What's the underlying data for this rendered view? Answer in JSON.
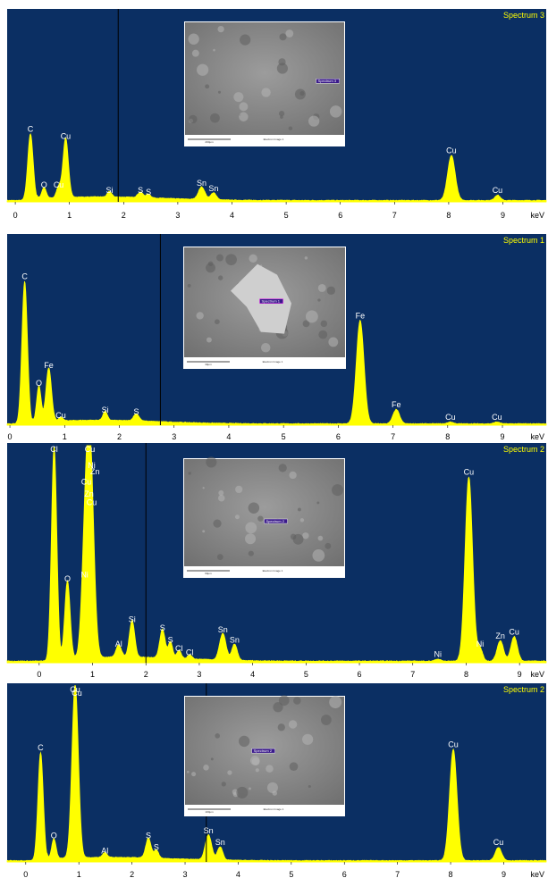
{
  "chart_data": [
    {
      "type": "area",
      "title": "Spectrum 3",
      "unit": "keV",
      "xlim": [
        -0.15,
        9.8
      ],
      "x_ticks": [
        0,
        1,
        2,
        3,
        4,
        5,
        6,
        7,
        8,
        9
      ],
      "cursor_x": 1.9,
      "peaks": [
        {
          "x": 0.28,
          "h": 0.37,
          "w": 0.05,
          "label": "C"
        },
        {
          "x": 0.53,
          "h": 0.06,
          "w": 0.04,
          "label": "O"
        },
        {
          "x": 0.93,
          "h": 0.33,
          "w": 0.05,
          "label": "Cu"
        },
        {
          "x": 0.8,
          "h": 0.06,
          "w": 0.04,
          "label": "Cu"
        },
        {
          "x": 1.74,
          "h": 0.03,
          "w": 0.04,
          "label": "Si"
        },
        {
          "x": 2.31,
          "h": 0.03,
          "w": 0.05,
          "label": "S"
        },
        {
          "x": 2.46,
          "h": 0.02,
          "w": 0.04,
          "label": "S"
        },
        {
          "x": 3.44,
          "h": 0.07,
          "w": 0.06,
          "label": "Sn"
        },
        {
          "x": 3.66,
          "h": 0.04,
          "w": 0.05,
          "label": "Sn"
        },
        {
          "x": 8.05,
          "h": 0.25,
          "w": 0.07,
          "label": "Cu"
        },
        {
          "x": 8.9,
          "h": 0.03,
          "w": 0.05,
          "label": "Cu"
        }
      ],
      "image": {
        "scale": "200µm",
        "caption": "Electron Image 1",
        "marker": "Spectrum 3"
      }
    },
    {
      "type": "area",
      "title": "Spectrum 1",
      "unit": "keV",
      "xlim": [
        -0.05,
        9.8
      ],
      "x_ticks": [
        0,
        1,
        2,
        3,
        4,
        5,
        6,
        7,
        8,
        9
      ],
      "cursor_x": 2.75,
      "peaks": [
        {
          "x": 0.27,
          "h": 0.8,
          "w": 0.05,
          "label": "C"
        },
        {
          "x": 0.53,
          "h": 0.2,
          "w": 0.04,
          "label": "O"
        },
        {
          "x": 0.71,
          "h": 0.3,
          "w": 0.05,
          "label": "Fe"
        },
        {
          "x": 0.93,
          "h": 0.02,
          "w": 0.04,
          "label": "Cu"
        },
        {
          "x": 1.74,
          "h": 0.05,
          "w": 0.04,
          "label": "Si"
        },
        {
          "x": 2.31,
          "h": 0.04,
          "w": 0.05,
          "label": "S"
        },
        {
          "x": 6.4,
          "h": 0.58,
          "w": 0.07,
          "label": "Fe"
        },
        {
          "x": 7.06,
          "h": 0.08,
          "w": 0.06,
          "label": "Fe"
        },
        {
          "x": 8.05,
          "h": 0.01,
          "w": 0.05,
          "label": "Cu"
        },
        {
          "x": 8.9,
          "h": 0.01,
          "w": 0.05,
          "label": "Cu"
        }
      ],
      "image": {
        "scale": "30µm",
        "caption": "Electron Image 1",
        "marker": "Spectrum 1"
      }
    },
    {
      "type": "area",
      "title": "Spectrum 2",
      "unit": "keV",
      "xlim": [
        -0.6,
        9.5
      ],
      "x_ticks": [
        0,
        1,
        2,
        3,
        4,
        5,
        6,
        7,
        8,
        9
      ],
      "cursor_x": 2.0,
      "peaks": [
        {
          "x": 0.28,
          "h": 1.05,
          "w": 0.05,
          "label": "Cl"
        },
        {
          "x": 0.53,
          "h": 0.38,
          "w": 0.05,
          "label": "O"
        },
        {
          "x": 0.85,
          "h": 0.4,
          "w": 0.06,
          "label": "Ni"
        },
        {
          "x": 0.95,
          "h": 1.05,
          "w": 0.07,
          "label": "Cu"
        },
        {
          "x": 1.49,
          "h": 0.06,
          "w": 0.05,
          "label": "Al"
        },
        {
          "x": 1.74,
          "h": 0.18,
          "w": 0.05,
          "label": "Si"
        },
        {
          "x": 2.31,
          "h": 0.14,
          "w": 0.05,
          "label": "S"
        },
        {
          "x": 2.46,
          "h": 0.08,
          "w": 0.04,
          "label": "S"
        },
        {
          "x": 2.62,
          "h": 0.04,
          "w": 0.04,
          "label": "Cl"
        },
        {
          "x": 2.82,
          "h": 0.02,
          "w": 0.04,
          "label": "Cl"
        },
        {
          "x": 3.44,
          "h": 0.13,
          "w": 0.06,
          "label": "Sn"
        },
        {
          "x": 3.66,
          "h": 0.08,
          "w": 0.05,
          "label": "Sn"
        },
        {
          "x": 7.47,
          "h": 0.01,
          "w": 0.05,
          "label": "Ni"
        },
        {
          "x": 8.05,
          "h": 0.9,
          "w": 0.07,
          "label": "Cu"
        },
        {
          "x": 8.26,
          "h": 0.06,
          "w": 0.05,
          "label": "Ni"
        },
        {
          "x": 8.64,
          "h": 0.1,
          "w": 0.06,
          "label": "Zn"
        },
        {
          "x": 8.9,
          "h": 0.12,
          "w": 0.06,
          "label": "Cu"
        }
      ],
      "peak_labels_only": [
        {
          "x": 0.95,
          "level": 0.95,
          "label": "Ni"
        },
        {
          "x": 1.01,
          "level": 0.92,
          "label": "Zn"
        },
        {
          "x": 0.85,
          "level": 0.87,
          "label": "Cu"
        },
        {
          "x": 0.9,
          "level": 0.81,
          "label": "Zn"
        },
        {
          "x": 0.95,
          "level": 0.77,
          "label": "Cu"
        }
      ],
      "image": {
        "scale": "60µm",
        "caption": "Electron Image 1",
        "marker": "Spectrum 2"
      }
    },
    {
      "type": "area",
      "title": "Spectrum 2",
      "unit": "keV",
      "xlim": [
        -0.35,
        9.8
      ],
      "x_ticks": [
        0,
        1,
        2,
        3,
        4,
        5,
        6,
        7,
        8,
        9
      ],
      "cursor_x": 3.4,
      "peaks": [
        {
          "x": 0.28,
          "h": 0.65,
          "w": 0.05,
          "label": "C"
        },
        {
          "x": 0.53,
          "h": 0.12,
          "w": 0.04,
          "label": "O"
        },
        {
          "x": 0.93,
          "h": 1.05,
          "w": 0.06,
          "label": "Cu"
        },
        {
          "x": 1.49,
          "h": 0.03,
          "w": 0.04,
          "label": "Al"
        },
        {
          "x": 2.31,
          "h": 0.12,
          "w": 0.05,
          "label": "S"
        },
        {
          "x": 2.46,
          "h": 0.05,
          "w": 0.04,
          "label": "S"
        },
        {
          "x": 3.44,
          "h": 0.15,
          "w": 0.06,
          "label": "Sn"
        },
        {
          "x": 3.66,
          "h": 0.08,
          "w": 0.05,
          "label": "Sn"
        },
        {
          "x": 8.05,
          "h": 0.67,
          "w": 0.07,
          "label": "Cu"
        },
        {
          "x": 8.9,
          "h": 0.08,
          "w": 0.06,
          "label": "Cu"
        }
      ],
      "peak_labels_only": [
        {
          "x": 0.93,
          "level": 1.0,
          "label": "Cu"
        }
      ],
      "image": {
        "scale": "100µm",
        "caption": "Electron Image 1",
        "marker": "Spectrum 2"
      }
    }
  ]
}
